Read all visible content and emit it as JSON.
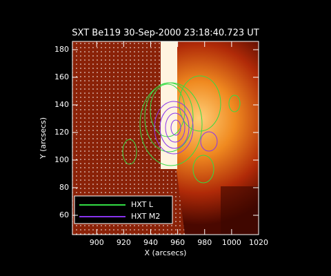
{
  "chart_data": {
    "type": "contour-image",
    "title": "SXT Be119 30-Sep-2000 23:18:40.723 UT",
    "x_label": "X (arcsecs)",
    "y_label": "Y (arcsecs)",
    "xlim": [
      882,
      1020
    ],
    "xticks": [
      900,
      920,
      940,
      960,
      980,
      1000,
      1020
    ],
    "ylim": [
      46,
      186
    ],
    "yticks": [
      60,
      80,
      100,
      120,
      140,
      160,
      180
    ],
    "series": [
      {
        "name": "HXT L",
        "color": "#33dd44"
      },
      {
        "name": "HXT M2",
        "color": "#8833ee"
      }
    ],
    "legend": "lower left"
  }
}
